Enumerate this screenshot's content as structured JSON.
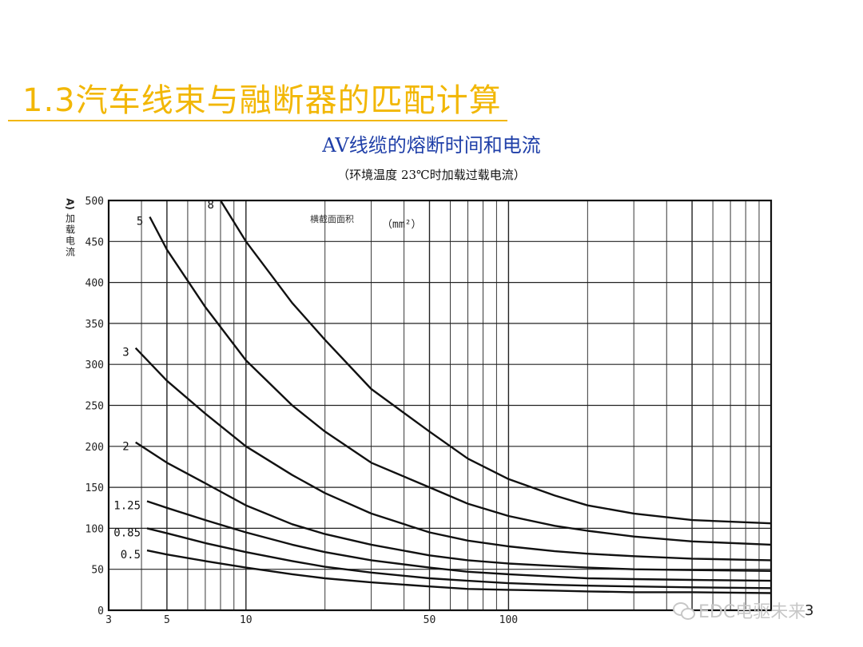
{
  "slide": {
    "title": "1.3汽车线束与融断器的匹配计算",
    "page_number": "3"
  },
  "watermark": {
    "text": "EDC电驱未来",
    "icon": "wechat-icon"
  },
  "colors": {
    "title": "#f2b705",
    "chart_title": "#1f3fa8",
    "curves": "#111111",
    "grid": "#222222"
  },
  "chart_data": {
    "type": "line",
    "title": "AV线缆的熔断时间和电流",
    "subtitle": "（环境温度 23℃时加载过载电流）",
    "ylabel": "加载电流",
    "ylabel_unit": "A)",
    "xlabel_annotation": "横截面面积",
    "xlabel_annotation_unit": "（mm²）",
    "x_scale": "log",
    "xlim": [
      3,
      1000
    ],
    "ylim": [
      0,
      500
    ],
    "y_ticks": [
      0,
      50,
      100,
      150,
      200,
      250,
      300,
      350,
      400,
      450,
      500
    ],
    "x_tick_labels": [
      {
        "value": 3,
        "label": "3"
      },
      {
        "value": 5,
        "label": "5"
      },
      {
        "value": 10,
        "label": "10"
      },
      {
        "value": 50,
        "label": "50"
      },
      {
        "value": 100,
        "label": "100"
      }
    ],
    "grid": true,
    "series": [
      {
        "name": "8",
        "x": [
          8,
          10,
          15,
          20,
          30,
          50,
          70,
          100,
          150,
          200,
          300,
          500,
          1000
        ],
        "y": [
          500,
          450,
          375,
          330,
          270,
          218,
          185,
          160,
          140,
          128,
          118,
          110,
          106
        ]
      },
      {
        "name": "5",
        "x": [
          4.3,
          5,
          7,
          10,
          15,
          20,
          30,
          50,
          70,
          100,
          150,
          200,
          300,
          500,
          1000
        ],
        "y": [
          480,
          440,
          370,
          305,
          250,
          218,
          180,
          150,
          130,
          115,
          103,
          97,
          90,
          84,
          80
        ]
      },
      {
        "name": "3",
        "x": [
          3.8,
          5,
          7,
          10,
          15,
          20,
          30,
          50,
          70,
          100,
          150,
          200,
          300,
          500,
          1000
        ],
        "y": [
          320,
          280,
          240,
          200,
          165,
          143,
          118,
          95,
          85,
          78,
          72,
          69,
          66,
          63,
          61
        ]
      },
      {
        "name": "2",
        "x": [
          3.8,
          5,
          7,
          10,
          15,
          20,
          30,
          50,
          70,
          100,
          150,
          200,
          300,
          500,
          1000
        ],
        "y": [
          205,
          180,
          155,
          128,
          105,
          93,
          80,
          67,
          61,
          57,
          54,
          52,
          50,
          49,
          48
        ]
      },
      {
        "name": "1.25",
        "x": [
          4.2,
          5,
          7,
          10,
          15,
          20,
          30,
          50,
          70,
          100,
          150,
          200,
          300,
          500,
          1000
        ],
        "y": [
          133,
          125,
          110,
          95,
          80,
          71,
          61,
          52,
          47,
          44,
          41,
          39,
          38,
          37,
          36
        ]
      },
      {
        "name": "0.85",
        "x": [
          4.2,
          5,
          7,
          10,
          15,
          20,
          30,
          50,
          70,
          100,
          150,
          200,
          300,
          500,
          1000
        ],
        "y": [
          100,
          94,
          82,
          71,
          60,
          53,
          46,
          39,
          36,
          33,
          31,
          30,
          29,
          28,
          27
        ]
      },
      {
        "name": "0.5",
        "x": [
          4.2,
          5,
          7,
          10,
          15,
          20,
          30,
          50,
          70,
          100,
          150,
          200,
          300,
          500,
          1000
        ],
        "y": [
          73,
          68,
          60,
          52,
          44,
          39,
          34,
          29,
          26,
          25,
          24,
          23,
          22,
          22,
          21
        ]
      }
    ]
  }
}
